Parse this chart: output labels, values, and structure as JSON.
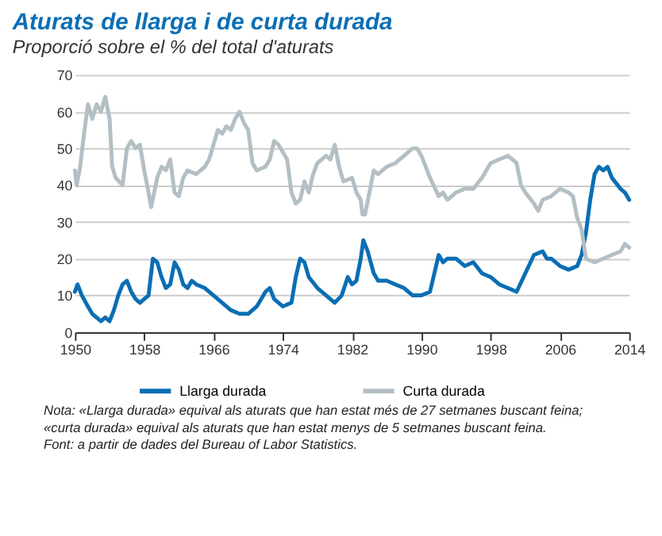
{
  "chart_data": {
    "type": "line",
    "title": "Aturats de llarga i de curta durada",
    "subtitle": "Proporció sobre el % del total d'aturats",
    "xlim": [
      1950,
      2014
    ],
    "xticks": [
      1950,
      1958,
      1966,
      1974,
      1982,
      1990,
      1998,
      2006,
      2014
    ],
    "ylim": [
      0,
      70
    ],
    "yticks": [
      0,
      10,
      20,
      30,
      40,
      50,
      60,
      70
    ],
    "grid": "y",
    "legend": "bottom",
    "x": [
      1950,
      1950.3,
      1950.8,
      1951.5,
      1952,
      1952.5,
      1953,
      1953.5,
      1954,
      1954.5,
      1955,
      1955.5,
      1956,
      1956.5,
      1957,
      1957.5,
      1958,
      1958.5,
      1959,
      1959.5,
      1960,
      1960.5,
      1961,
      1961.5,
      1962,
      1962.5,
      1963,
      1963.5,
      1964,
      1965,
      1966,
      1967,
      1968,
      1969,
      1970,
      1971,
      1972,
      1972.5,
      1973,
      1974,
      1975,
      1975.5,
      1976,
      1976.5,
      1977,
      1978,
      1979,
      1980,
      1980.8,
      1981.5,
      1982,
      1982.5,
      1983,
      1983.3,
      1983.8,
      1984.5,
      1985,
      1986,
      1987,
      1988,
      1989,
      1990,
      1991,
      1991.5,
      1992,
      1992.5,
      1993,
      1994,
      1995,
      1996,
      1997,
      1998,
      1999,
      2000,
      2001,
      2002,
      2003,
      2004,
      2004.5,
      2005,
      2006,
      2007,
      2008,
      2008.5,
      2009,
      2009.5,
      2010,
      2010.5,
      2011,
      2011.5,
      2012,
      2013,
      2013.5,
      2014
    ],
    "series": [
      {
        "name": "Llarga durada",
        "color": "#0a6eb4",
        "values": [
          11,
          13,
          10,
          7,
          5,
          4,
          3,
          4,
          3,
          6,
          10,
          13,
          14,
          11,
          9,
          8,
          9,
          10,
          20,
          19,
          15,
          12,
          13,
          19,
          17,
          13,
          12,
          14,
          13,
          12,
          10,
          8,
          6,
          5,
          5,
          7,
          11,
          12,
          9,
          7,
          8,
          15,
          20,
          19,
          15,
          12,
          10,
          8,
          10,
          15,
          13,
          14,
          20,
          25,
          22,
          16,
          14,
          14,
          13,
          12,
          10,
          10,
          11,
          16,
          21,
          19,
          20,
          20,
          18,
          19,
          16,
          15,
          13,
          12,
          11,
          16,
          21,
          22,
          20,
          20,
          18,
          17,
          18,
          21,
          27,
          36,
          43,
          45,
          44,
          45,
          42,
          39,
          38,
          36
        ]
      },
      {
        "name": "Curta durada",
        "color": "#b3bfc4",
        "x": [
          1950,
          1950.2,
          1950.6,
          1951,
          1951.5,
          1952,
          1952.5,
          1953,
          1953.5,
          1954,
          1954.3,
          1954.7,
          1955.5,
          1956,
          1956.5,
          1957,
          1957.5,
          1958,
          1958.5,
          1958.8,
          1959.5,
          1960,
          1960.5,
          1961,
          1961.5,
          1962,
          1962.5,
          1963,
          1964,
          1965,
          1965.5,
          1966,
          1966.5,
          1967,
          1967.5,
          1968,
          1968.5,
          1969,
          1969.5,
          1970,
          1970.5,
          1971,
          1972,
          1972.5,
          1973,
          1973.5,
          1974,
          1974.5,
          1975,
          1975.5,
          1976,
          1976.5,
          1977,
          1977.5,
          1978,
          1979,
          1979.5,
          1980,
          1980.5,
          1981,
          1982,
          1982.5,
          1983,
          1983.2,
          1983.5,
          1984,
          1984.5,
          1985,
          1986,
          1987,
          1988,
          1989,
          1989.5,
          1990,
          1991,
          1992,
          1992.5,
          1993,
          1994,
          1995,
          1996,
          1997,
          1998,
          1999,
          2000,
          2001,
          2001.5,
          2002,
          2003,
          2003.5,
          2004,
          2005,
          2006,
          2007,
          2007.5,
          2008,
          2008.5,
          2009,
          2010,
          2011,
          2012,
          2013,
          2013.5,
          2014
        ],
        "values": [
          44,
          40,
          45,
          53,
          62,
          58,
          62,
          60,
          64,
          58,
          45,
          42,
          40,
          50,
          52,
          50,
          51,
          44,
          38,
          34,
          42,
          45,
          44,
          47,
          38,
          37,
          42,
          44,
          43,
          45,
          47,
          51,
          55,
          54,
          56,
          55,
          58,
          60,
          57,
          55,
          46,
          44,
          45,
          47,
          52,
          51,
          49,
          47,
          38,
          35,
          36,
          41,
          38,
          43,
          46,
          48,
          47,
          51,
          45,
          41,
          42,
          38,
          36,
          32,
          32,
          38,
          44,
          43,
          45,
          46,
          48,
          50,
          50,
          48,
          42,
          37,
          38,
          36,
          38,
          39,
          39,
          42,
          46,
          47,
          48,
          46,
          40,
          38,
          35,
          33,
          36,
          37,
          39,
          38,
          37,
          31,
          28,
          20,
          19,
          20,
          21,
          22,
          24,
          23
        ]
      }
    ],
    "annotations": [
      "Nota: «Llarga durada» equival als aturats que han estat més de 27 setmanes buscant feina; «curta durada» equival als aturats que han estat menys de 5 setmanes buscant feina.",
      "Font: a partir de dades del Bureau of Labor Statistics."
    ]
  }
}
